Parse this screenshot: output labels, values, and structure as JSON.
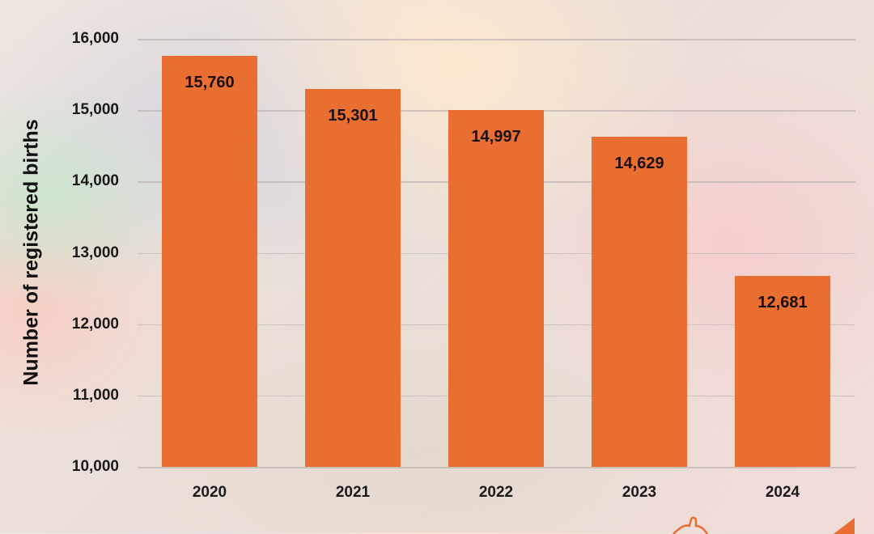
{
  "chart_data": {
    "type": "bar",
    "title": "",
    "xlabel": "",
    "ylabel": "Number of registered births",
    "categories": [
      "2020",
      "2021",
      "2022",
      "2023",
      "2024"
    ],
    "values": [
      15760,
      15301,
      14997,
      14629,
      12681
    ],
    "value_labels": [
      "15,760",
      "15,301",
      "14,997",
      "14,629",
      "12,681"
    ],
    "ylim": [
      10000,
      16000
    ],
    "yticks": [
      10000,
      11000,
      12000,
      13000,
      14000,
      15000,
      16000
    ],
    "ytick_labels": [
      "10,000",
      "11,000",
      "12,000",
      "13,000",
      "14,000",
      "15,000",
      "16,000"
    ],
    "grid": true,
    "legend": null,
    "bar_color": "#e96e32"
  }
}
